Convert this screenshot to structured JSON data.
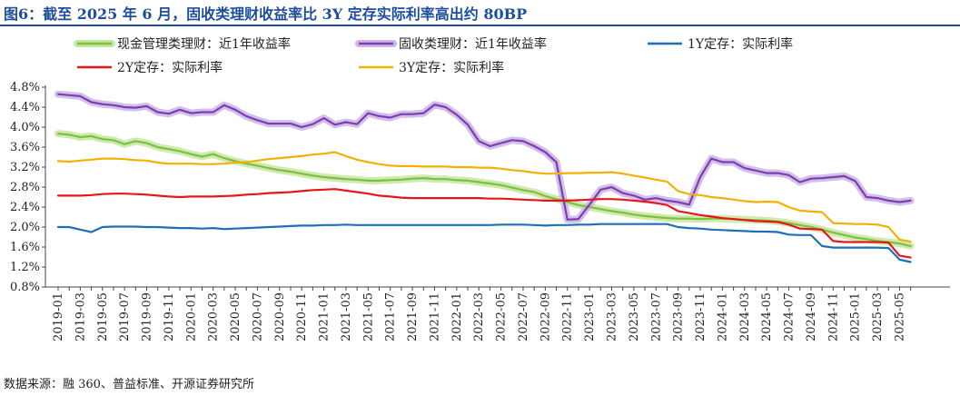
{
  "title": "图6：截至 2025 年 6 月，固收类理财收益率比 3Y 定存实际利率高出约 80BP",
  "source": "数据来源：融 360、普益标准、开源证券研究所",
  "chart_data": {
    "type": "line",
    "title": "图6：截至 2025 年 6 月，固收类理财收益率比 3Y 定存实际利率高出约 80BP",
    "xlabel": "",
    "ylabel": "",
    "ylim": [
      0.8,
      4.8
    ],
    "yticks": [
      "4.8%",
      "4.4%",
      "4.0%",
      "3.6%",
      "3.2%",
      "2.8%",
      "2.4%",
      "2.0%",
      "1.6%",
      "1.2%",
      "0.8%"
    ],
    "x": [
      "2019-01",
      "2019-02",
      "2019-03",
      "2019-04",
      "2019-05",
      "2019-06",
      "2019-07",
      "2019-08",
      "2019-09",
      "2019-10",
      "2019-11",
      "2019-12",
      "2020-01",
      "2020-02",
      "2020-03",
      "2020-04",
      "2020-05",
      "2020-06",
      "2020-07",
      "2020-08",
      "2020-09",
      "2020-10",
      "2020-11",
      "2020-12",
      "2021-01",
      "2021-02",
      "2021-03",
      "2021-04",
      "2021-05",
      "2021-06",
      "2021-07",
      "2021-08",
      "2021-09",
      "2021-10",
      "2021-11",
      "2021-12",
      "2022-01",
      "2022-02",
      "2022-03",
      "2022-04",
      "2022-05",
      "2022-06",
      "2022-07",
      "2022-08",
      "2022-09",
      "2022-10",
      "2022-11",
      "2022-12",
      "2023-01",
      "2023-02",
      "2023-03",
      "2023-04",
      "2023-05",
      "2023-06",
      "2023-07",
      "2023-08",
      "2023-09",
      "2023-10",
      "2023-11",
      "2023-12",
      "2024-01",
      "2024-02",
      "2024-03",
      "2024-04",
      "2024-05",
      "2024-06",
      "2024-07",
      "2024-08",
      "2024-09",
      "2024-10",
      "2024-11",
      "2024-12",
      "2025-01",
      "2025-02",
      "2025-03",
      "2025-04",
      "2025-05",
      "2025-06"
    ],
    "xticks": [
      "2019-01",
      "2019-03",
      "2019-05",
      "2019-07",
      "2019-09",
      "2019-11",
      "2020-01",
      "2020-03",
      "2020-05",
      "2020-07",
      "2020-09",
      "2020-11",
      "2021-01",
      "2021-03",
      "2021-05",
      "2021-07",
      "2021-09",
      "2021-11",
      "2022-01",
      "2022-03",
      "2022-05",
      "2022-07",
      "2022-09",
      "2022-11",
      "2023-01",
      "2023-03",
      "2023-05",
      "2023-07",
      "2023-09",
      "2023-11",
      "2024-01",
      "2024-03",
      "2024-05",
      "2024-07",
      "2024-09",
      "2024-11",
      "2025-01",
      "2025-03",
      "2025-05"
    ],
    "legend_position": "top",
    "series": [
      {
        "name": "现金管理类理财：近1年收益率",
        "color": "#7ac143",
        "glow": "#c8e6a0",
        "values": [
          3.87,
          3.85,
          3.8,
          3.82,
          3.76,
          3.74,
          3.66,
          3.72,
          3.68,
          3.6,
          3.56,
          3.52,
          3.46,
          3.41,
          3.46,
          3.38,
          3.32,
          3.27,
          3.23,
          3.18,
          3.14,
          3.11,
          3.07,
          3.03,
          3.0,
          2.98,
          2.96,
          2.95,
          2.93,
          2.93,
          2.94,
          2.95,
          2.97,
          2.98,
          2.96,
          2.96,
          2.94,
          2.93,
          2.9,
          2.87,
          2.84,
          2.79,
          2.74,
          2.7,
          2.62,
          2.56,
          2.5,
          2.44,
          2.4,
          2.36,
          2.32,
          2.29,
          2.25,
          2.22,
          2.2,
          2.18,
          2.17,
          2.17,
          2.16,
          2.17,
          2.17,
          2.16,
          2.15,
          2.14,
          2.13,
          2.11,
          2.08,
          2.04,
          2.0,
          1.95,
          1.89,
          1.84,
          1.79,
          1.76,
          1.72,
          1.7,
          1.67,
          1.62
        ]
      },
      {
        "name": "固收类理财：近1年收益率",
        "color": "#7a3fb0",
        "glow": "#cdb3e6",
        "values": [
          4.66,
          4.64,
          4.62,
          4.5,
          4.46,
          4.44,
          4.4,
          4.39,
          4.42,
          4.3,
          4.27,
          4.35,
          4.28,
          4.3,
          4.3,
          4.44,
          4.35,
          4.22,
          4.14,
          4.07,
          4.07,
          4.07,
          4.0,
          4.06,
          4.18,
          4.05,
          4.1,
          4.06,
          4.28,
          4.22,
          4.19,
          4.26,
          4.26,
          4.28,
          4.45,
          4.4,
          4.25,
          4.05,
          3.72,
          3.62,
          3.68,
          3.74,
          3.72,
          3.62,
          3.5,
          3.3,
          2.15,
          2.16,
          2.45,
          2.75,
          2.8,
          2.68,
          2.63,
          2.55,
          2.58,
          2.53,
          2.5,
          2.45,
          3.0,
          3.37,
          3.3,
          3.3,
          3.18,
          3.13,
          3.08,
          3.08,
          3.04,
          2.9,
          2.97,
          2.98,
          3.0,
          3.02,
          2.92,
          2.6,
          2.58,
          2.53,
          2.5,
          2.53
        ]
      },
      {
        "name": "1Y定存：实际利率",
        "color": "#1f6fb5",
        "glow": null,
        "values": [
          2.0,
          2.0,
          1.95,
          1.9,
          2.0,
          2.01,
          2.01,
          2.01,
          2.0,
          2.0,
          1.99,
          1.98,
          1.98,
          1.97,
          1.98,
          1.96,
          1.97,
          1.98,
          1.99,
          2.0,
          2.01,
          2.02,
          2.03,
          2.03,
          2.04,
          2.04,
          2.05,
          2.04,
          2.04,
          2.04,
          2.04,
          2.04,
          2.04,
          2.04,
          2.04,
          2.04,
          2.04,
          2.04,
          2.04,
          2.04,
          2.05,
          2.05,
          2.05,
          2.04,
          2.03,
          2.04,
          2.04,
          2.05,
          2.05,
          2.06,
          2.06,
          2.06,
          2.06,
          2.06,
          2.06,
          2.06,
          2.0,
          1.98,
          1.97,
          1.95,
          1.94,
          1.93,
          1.92,
          1.91,
          1.91,
          1.9,
          1.85,
          1.84,
          1.84,
          1.62,
          1.59,
          1.59,
          1.59,
          1.59,
          1.59,
          1.58,
          1.35,
          1.3
        ]
      },
      {
        "name": "2Y定存：实际利率",
        "color": "#e8161b",
        "glow": null,
        "values": [
          2.63,
          2.63,
          2.63,
          2.64,
          2.66,
          2.67,
          2.67,
          2.66,
          2.65,
          2.63,
          2.61,
          2.6,
          2.61,
          2.61,
          2.61,
          2.62,
          2.63,
          2.65,
          2.66,
          2.68,
          2.69,
          2.7,
          2.72,
          2.74,
          2.75,
          2.76,
          2.73,
          2.7,
          2.67,
          2.63,
          2.61,
          2.59,
          2.58,
          2.58,
          2.58,
          2.58,
          2.58,
          2.58,
          2.58,
          2.57,
          2.57,
          2.56,
          2.55,
          2.54,
          2.53,
          2.53,
          2.53,
          2.54,
          2.55,
          2.56,
          2.56,
          2.55,
          2.53,
          2.51,
          2.48,
          2.44,
          2.32,
          2.28,
          2.24,
          2.21,
          2.18,
          2.16,
          2.14,
          2.12,
          2.11,
          2.1,
          2.05,
          1.97,
          1.96,
          1.95,
          1.72,
          1.7,
          1.7,
          1.7,
          1.7,
          1.69,
          1.43,
          1.39
        ]
      },
      {
        "name": "3Y定存：实际利率",
        "color": "#f2b100",
        "glow": null,
        "values": [
          3.32,
          3.31,
          3.33,
          3.35,
          3.37,
          3.37,
          3.36,
          3.34,
          3.33,
          3.29,
          3.27,
          3.27,
          3.27,
          3.26,
          3.26,
          3.27,
          3.29,
          3.3,
          3.33,
          3.36,
          3.38,
          3.4,
          3.42,
          3.45,
          3.47,
          3.5,
          3.42,
          3.35,
          3.3,
          3.26,
          3.23,
          3.22,
          3.22,
          3.21,
          3.21,
          3.21,
          3.2,
          3.2,
          3.19,
          3.19,
          3.17,
          3.14,
          3.12,
          3.09,
          3.07,
          3.07,
          3.08,
          3.08,
          3.09,
          3.09,
          3.1,
          3.07,
          3.03,
          2.99,
          2.95,
          2.91,
          2.72,
          2.66,
          2.64,
          2.6,
          2.58,
          2.55,
          2.52,
          2.5,
          2.51,
          2.5,
          2.4,
          2.33,
          2.31,
          2.3,
          2.08,
          2.07,
          2.06,
          2.06,
          2.05,
          2.0,
          1.75,
          1.71
        ]
      }
    ]
  }
}
